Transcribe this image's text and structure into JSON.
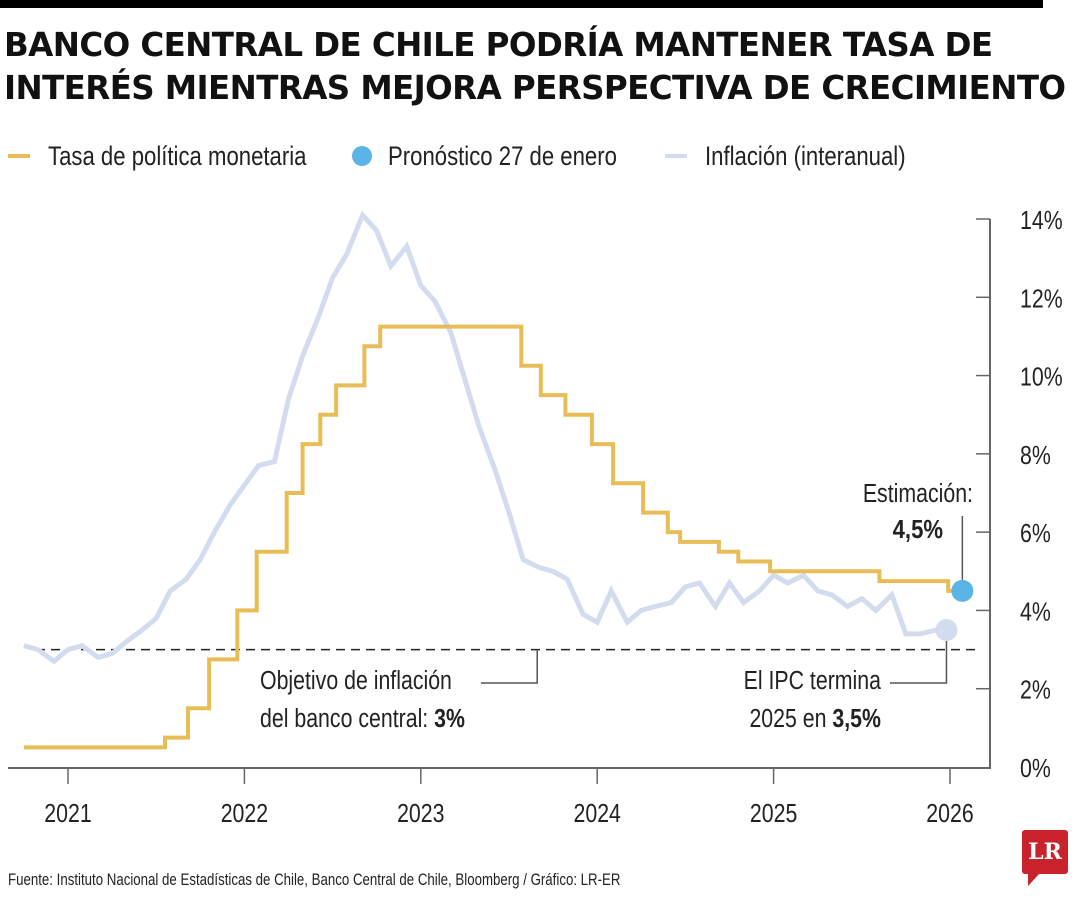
{
  "title_lines": [
    "BANCO CENTRAL DE CHILE PODRÍA MANTENER TASA DE",
    "INTERÉS MIENTRAS MEJORA PERSPECTIVA DE CRECIMIENTO"
  ],
  "legend": [
    {
      "label": "Tasa de política monetaria",
      "kind": "line",
      "color": "#e8bd57"
    },
    {
      "label": "Pronóstico 27 de enero",
      "kind": "dot",
      "color": "#5ab4e5"
    },
    {
      "label": "Inflación (interanual)",
      "kind": "line",
      "color": "#d3dcef"
    }
  ],
  "source": "Fuente: Instituto Nacional de Estadísticas de Chile, Banco Central de Chile, Bloomberg / Gráfico: LR-ER",
  "logo_text": "LR",
  "annotations": {
    "target_line1": "Objetivo de inflación",
    "target_line2_prefix": "del banco central: ",
    "target_line2_bold": "3%",
    "estimate_line1": "Estimación:",
    "estimate_bold": "4,5%",
    "ipc_line1": "El IPC termina",
    "ipc_line2_prefix": "2025 en ",
    "ipc_line2_bold": "3,5%"
  },
  "chart_data": {
    "type": "line",
    "title": "Banco Central de Chile podría mantener tasa de interés mientras mejora perspectiva de crecimiento",
    "xlabel": "",
    "ylabel": "",
    "x_ticks": [
      "2021",
      "2022",
      "2023",
      "2024",
      "2025",
      "2026"
    ],
    "y_ticks": [
      "0%",
      "2%",
      "4%",
      "6%",
      "8%",
      "10%",
      "12%",
      "14%"
    ],
    "ylim": [
      0,
      14
    ],
    "xlim": [
      2020.7,
      2026.3
    ],
    "y_axis_position": "right",
    "grid": false,
    "legend_position": "top",
    "colors": {
      "policy": "#e8bd57",
      "forecast": "#5ab4e5",
      "inflation": "#d3dcef",
      "target": "#222222",
      "axis": "#555555"
    },
    "series": [
      {
        "name": "Tasa de política monetaria",
        "style": "step",
        "points": [
          [
            2020.75,
            0.5
          ],
          [
            2021.55,
            0.75
          ],
          [
            2021.68,
            1.5
          ],
          [
            2021.8,
            2.75
          ],
          [
            2021.96,
            4.0
          ],
          [
            2022.07,
            5.5
          ],
          [
            2022.24,
            7.0
          ],
          [
            2022.33,
            8.25
          ],
          [
            2022.43,
            9.0
          ],
          [
            2022.52,
            9.75
          ],
          [
            2022.68,
            10.75
          ],
          [
            2022.77,
            11.25
          ],
          [
            2023.57,
            10.25
          ],
          [
            2023.68,
            9.5
          ],
          [
            2023.82,
            9.0
          ],
          [
            2023.97,
            8.25
          ],
          [
            2024.09,
            7.25
          ],
          [
            2024.26,
            6.5
          ],
          [
            2024.4,
            6.0
          ],
          [
            2024.47,
            5.75
          ],
          [
            2024.69,
            5.5
          ],
          [
            2024.8,
            5.25
          ],
          [
            2024.98,
            5.0
          ],
          [
            2025.6,
            4.75
          ],
          [
            2025.99,
            4.5
          ],
          [
            2026.03,
            4.5
          ]
        ]
      },
      {
        "name": "Inflación (interanual)",
        "style": "line",
        "points": [
          [
            2020.75,
            3.1
          ],
          [
            2020.83,
            3.0
          ],
          [
            2020.92,
            2.7
          ],
          [
            2021.0,
            3.0
          ],
          [
            2021.08,
            3.1
          ],
          [
            2021.17,
            2.8
          ],
          [
            2021.25,
            2.9
          ],
          [
            2021.33,
            3.2
          ],
          [
            2021.42,
            3.5
          ],
          [
            2021.5,
            3.8
          ],
          [
            2021.58,
            4.5
          ],
          [
            2021.67,
            4.8
          ],
          [
            2021.75,
            5.3
          ],
          [
            2021.83,
            6.0
          ],
          [
            2021.92,
            6.7
          ],
          [
            2022.0,
            7.2
          ],
          [
            2022.08,
            7.7
          ],
          [
            2022.17,
            7.8
          ],
          [
            2022.25,
            9.4
          ],
          [
            2022.33,
            10.5
          ],
          [
            2022.42,
            11.5
          ],
          [
            2022.5,
            12.5
          ],
          [
            2022.58,
            13.1
          ],
          [
            2022.67,
            14.1
          ],
          [
            2022.75,
            13.7
          ],
          [
            2022.83,
            12.8
          ],
          [
            2022.92,
            13.3
          ],
          [
            2023.0,
            12.3
          ],
          [
            2023.08,
            11.9
          ],
          [
            2023.17,
            11.1
          ],
          [
            2023.25,
            9.9
          ],
          [
            2023.33,
            8.7
          ],
          [
            2023.42,
            7.6
          ],
          [
            2023.5,
            6.5
          ],
          [
            2023.58,
            5.3
          ],
          [
            2023.67,
            5.1
          ],
          [
            2023.75,
            5.0
          ],
          [
            2023.83,
            4.8
          ],
          [
            2023.92,
            3.9
          ],
          [
            2024.0,
            3.7
          ],
          [
            2024.08,
            4.5
          ],
          [
            2024.17,
            3.7
          ],
          [
            2024.25,
            4.0
          ],
          [
            2024.33,
            4.1
          ],
          [
            2024.42,
            4.2
          ],
          [
            2024.5,
            4.6
          ],
          [
            2024.58,
            4.7
          ],
          [
            2024.67,
            4.1
          ],
          [
            2024.75,
            4.7
          ],
          [
            2024.83,
            4.2
          ],
          [
            2024.92,
            4.5
          ],
          [
            2025.0,
            4.9
          ],
          [
            2025.08,
            4.7
          ],
          [
            2025.17,
            4.9
          ],
          [
            2025.25,
            4.5
          ],
          [
            2025.33,
            4.4
          ],
          [
            2025.42,
            4.1
          ],
          [
            2025.5,
            4.3
          ],
          [
            2025.58,
            4.0
          ],
          [
            2025.67,
            4.4
          ],
          [
            2025.75,
            3.4
          ],
          [
            2025.83,
            3.4
          ],
          [
            2025.92,
            3.5
          ]
        ]
      }
    ],
    "markers": [
      {
        "name": "Pronóstico 27 de enero",
        "x": 2026.07,
        "y": 4.5,
        "label": "Estimación: 4,5%"
      },
      {
        "name": "IPC cierre 2025",
        "x": 2025.98,
        "y": 3.5,
        "label": "El IPC termina 2025 en 3,5%"
      }
    ],
    "reference_lines": [
      {
        "name": "Objetivo de inflación del banco central",
        "y": 3.0,
        "style": "dashed",
        "label": "3%"
      }
    ]
  }
}
